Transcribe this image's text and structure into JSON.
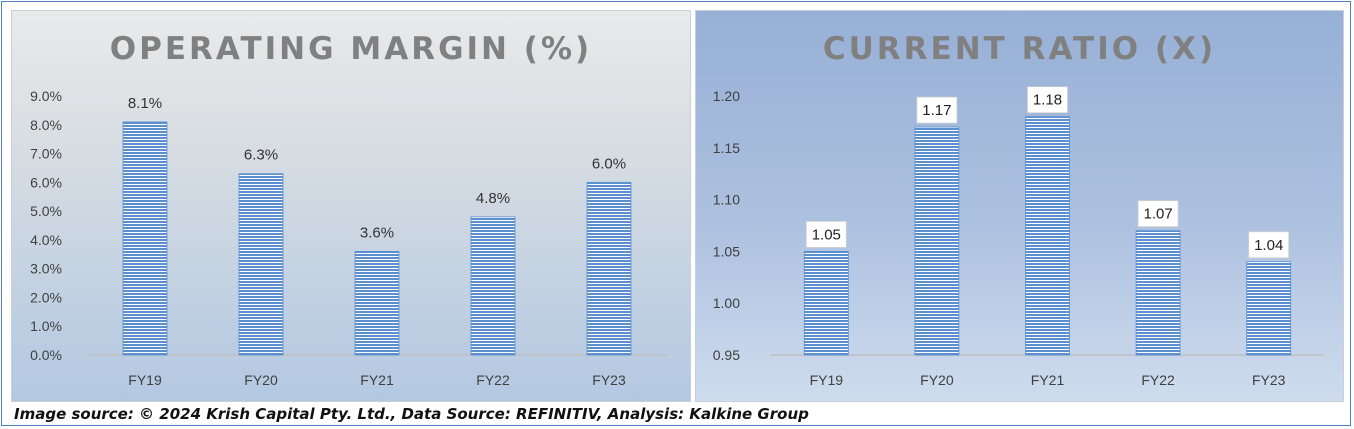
{
  "source_note": "Image source: © 2024 Krish Capital Pty. Ltd., Data Source: REFINITIV, Analysis: Kalkine Group",
  "chart_data": [
    {
      "type": "bar",
      "title": "OPERATING MARGIN (%)",
      "categories": [
        "FY19",
        "FY20",
        "FY21",
        "FY22",
        "FY23"
      ],
      "values": [
        8.1,
        6.3,
        3.6,
        4.8,
        6.0
      ],
      "data_labels": [
        "8.1%",
        "6.3%",
        "3.6%",
        "4.8%",
        "6.0%"
      ],
      "yticks": [
        "0.0%",
        "1.0%",
        "2.0%",
        "3.0%",
        "4.0%",
        "5.0%",
        "6.0%",
        "7.0%",
        "8.0%",
        "9.0%"
      ],
      "ylim": [
        0,
        9
      ],
      "grid": false,
      "bar_color": "#5b8fd0",
      "label_style": "plain"
    },
    {
      "type": "bar",
      "title": "CURRENT RATIO (X)",
      "categories": [
        "FY19",
        "FY20",
        "FY21",
        "FY22",
        "FY23"
      ],
      "values": [
        1.05,
        1.17,
        1.18,
        1.07,
        1.04
      ],
      "data_labels": [
        "1.05",
        "1.17",
        "1.18",
        "1.07",
        "1.04"
      ],
      "yticks": [
        "0.95",
        "1.00",
        "1.05",
        "1.10",
        "1.15",
        "1.20"
      ],
      "ylim": [
        0.95,
        1.2
      ],
      "grid": false,
      "bar_color": "#5b8fd0",
      "label_style": "boxed"
    }
  ]
}
